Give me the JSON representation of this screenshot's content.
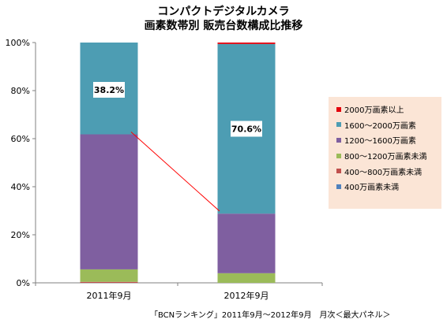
{
  "titles": {
    "line1": "コンパクトデジタルカメラ",
    "line2": "画素数帯別 販売台数構成比推移"
  },
  "footnote": "「BCNランキング」2011年9月～2012年9月　月次＜最大パネル＞",
  "chart_data": {
    "type": "bar",
    "stacked": true,
    "categories": [
      "2011年9月",
      "2012年9月"
    ],
    "ylim": [
      0,
      100
    ],
    "yticks": [
      "0%",
      "20%",
      "40%",
      "60%",
      "80%",
      "100%"
    ],
    "grid": false,
    "legend_position": "right",
    "series": [
      {
        "name": "400万画素未満",
        "color": "#4f81bd",
        "values": [
          0.0,
          0.0
        ]
      },
      {
        "name": "400～800万画素未満",
        "color": "#c0504d",
        "values": [
          0.4,
          0.0
        ]
      },
      {
        "name": "800～1200万画素未満",
        "color": "#9bbb59",
        "values": [
          5.2,
          4.0
        ]
      },
      {
        "name": "1200～1600万画素",
        "color": "#7f5fa0",
        "values": [
          56.2,
          24.8
        ]
      },
      {
        "name": "1600～2000万画素",
        "color": "#4d9db3",
        "values": [
          38.2,
          70.6
        ]
      },
      {
        "name": "2000万画素以上",
        "color": "#e3000b",
        "values": [
          0.0,
          0.6
        ]
      }
    ],
    "data_labels": [
      {
        "category": "2011年9月",
        "series": "1600～2000万画素",
        "text": "38.2%"
      },
      {
        "category": "2012年9月",
        "series": "1600～2000万画素",
        "text": "70.6%"
      }
    ],
    "annotation": "red connector line from the 1200～1600万画素 segment top of 2011年9月 toward the 2012年9月 bar"
  }
}
